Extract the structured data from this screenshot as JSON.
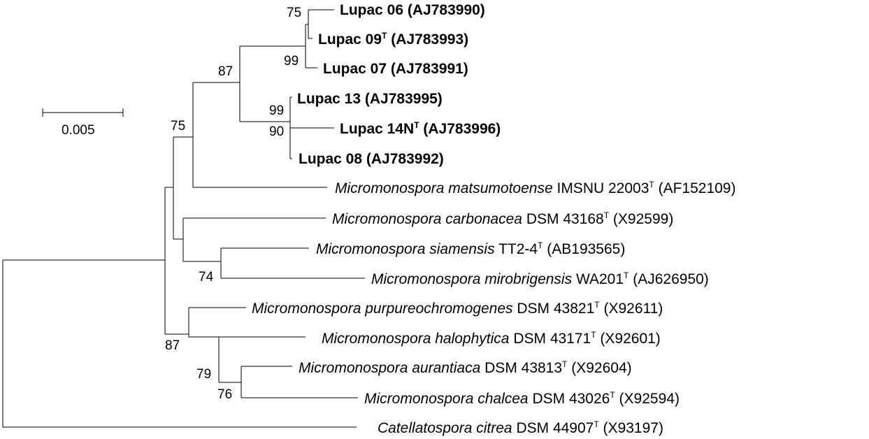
{
  "scale_bar": {
    "label": "0.005"
  },
  "bootstrap": {
    "n_lupac_06_09": "75",
    "n_lupac_09_07": "99",
    "n_lupac_group": "87",
    "n_lupac_13_14": "99",
    "n_lupac_14_08": "90",
    "n_lupac_matsumotoense": "75",
    "n_siamensis_mirobrigensis": "74",
    "n_lower_group": "87",
    "n_halophytica_group": "79",
    "n_aurantiaca_chalcea": "76"
  },
  "taxa": [
    {
      "id": "lupac06",
      "bold": true,
      "species": "",
      "name": "Lupac 06",
      "type_mark": "",
      "accession": "(AJ783990)"
    },
    {
      "id": "lupac09",
      "bold": true,
      "species": "",
      "name": "Lupac 09",
      "type_mark": "T",
      "accession": "(AJ783993)"
    },
    {
      "id": "lupac07",
      "bold": true,
      "species": "",
      "name": "Lupac 07",
      "type_mark": "",
      "accession": "(AJ783991)"
    },
    {
      "id": "lupac13",
      "bold": true,
      "species": "",
      "name": "Lupac 13",
      "type_mark": "",
      "accession": "(AJ783995)"
    },
    {
      "id": "lupac14",
      "bold": true,
      "species": "",
      "name": "Lupac 14N",
      "type_mark": "T",
      "accession": "(AJ783996)"
    },
    {
      "id": "lupac08",
      "bold": true,
      "species": "",
      "name": "Lupac 08",
      "type_mark": "",
      "accession": "(AJ783992)"
    },
    {
      "id": "matsumotoense",
      "bold": false,
      "species": "Micromonospora matsumotoense",
      "name": "IMSNU 22003",
      "type_mark": "T",
      "accession": "(AF152109)"
    },
    {
      "id": "carbonacea",
      "bold": false,
      "species": "Micromonospora carbonacea",
      "name": "DSM 43168",
      "type_mark": "T",
      "accession": "(X92599)"
    },
    {
      "id": "siamensis",
      "bold": false,
      "species": "Micromonospora siamensis",
      "name": "TT2-4",
      "type_mark": "T",
      "accession": "(AB193565)"
    },
    {
      "id": "mirobrigensis",
      "bold": false,
      "species": "Micromonospora mirobrigensis",
      "name": "WA201",
      "type_mark": "T",
      "accession": "(AJ626950)"
    },
    {
      "id": "purpureochromogenes",
      "bold": false,
      "species": "Micromonospora purpureochromogenes",
      "name": "DSM 43821",
      "type_mark": "T",
      "accession": "(X92611)"
    },
    {
      "id": "halophytica",
      "bold": false,
      "species": "Micromonospora halophytica",
      "name": "DSM 43171",
      "type_mark": "T",
      "accession": "(X92601)"
    },
    {
      "id": "aurantiaca",
      "bold": false,
      "species": "Micromonospora aurantiaca",
      "name": "DSM 43813",
      "type_mark": "T",
      "accession": "(X92604)"
    },
    {
      "id": "chalcea",
      "bold": false,
      "species": "Micromonospora chalcea",
      "name": "DSM 43026",
      "type_mark": "T",
      "accession": "(X92594)"
    },
    {
      "id": "catellatospora",
      "bold": false,
      "species": "Catellatospora citrea",
      "name": "DSM 44907",
      "type_mark": "T",
      "accession": "(X93197)"
    }
  ]
}
